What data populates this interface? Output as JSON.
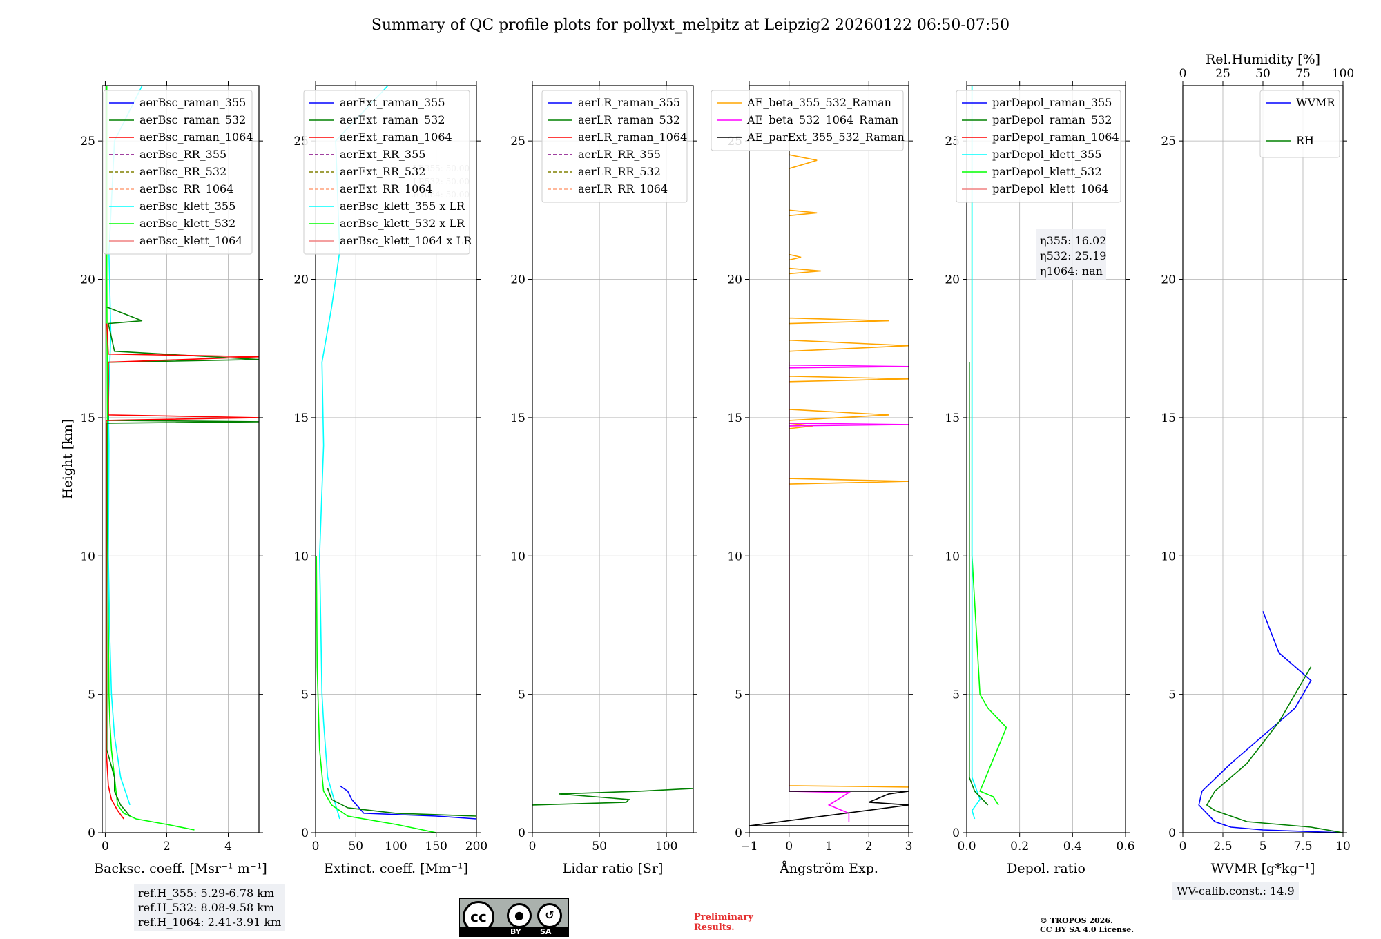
{
  "title": "Summary of QC profile plots for pollyxt_melpitz at Leipzig2 20260122 06:50-07:50",
  "colors": {
    "raman_355": "#0000ff",
    "raman_532": "#008000",
    "raman_1064": "#ff0000",
    "rr_355": "#800080",
    "rr_532": "#808000",
    "rr_1064": "#ffa07a",
    "klett_355": "#00ffff",
    "klett_532": "#00ff00",
    "klett_1064": "#f08080",
    "ae_beta_355_532": "#ffa500",
    "ae_beta_532_1064": "#ff00ff",
    "ae_parext": "#000000",
    "rh": "#008000",
    "wvmr": "#0000ff"
  },
  "chart_data": [
    {
      "type": "line",
      "id": "backscatter",
      "xlabel": "Backsc. coeff. [Msr⁻¹ m⁻¹]",
      "ylabel": "Height [km]",
      "xlim": [
        -0.1,
        5
      ],
      "ylim": [
        0,
        27
      ],
      "xticks": [
        0,
        2,
        4
      ],
      "yticks": [
        0,
        5,
        10,
        15,
        20,
        25
      ],
      "legend": [
        "aerBsc_raman_355",
        "aerBsc_raman_532",
        "aerBsc_raman_1064",
        "aerBsc_RR_355",
        "aerBsc_RR_532",
        "aerBsc_RR_1064",
        "aerBsc_klett_355",
        "aerBsc_klett_532",
        "aerBsc_klett_1064"
      ],
      "series": [
        {
          "name": "aerBsc_klett_532",
          "color": "klett_532",
          "x": [
            2.9,
            2.0,
            1.0,
            0.6,
            0.4,
            0.3,
            0.2,
            0.15,
            0.12,
            0.1,
            0.08,
            0.05,
            0.05
          ],
          "y": [
            0.1,
            0.3,
            0.5,
            0.7,
            1.0,
            2.0,
            3.0,
            4.0,
            5.0,
            8.0,
            12.0,
            20.0,
            27.0
          ]
        },
        {
          "name": "aerBsc_klett_355",
          "color": "klett_355",
          "x": [
            0.8,
            0.5,
            0.3,
            0.2,
            0.15,
            0.1,
            0.12,
            0.1,
            0.18,
            0.12,
            0.3,
            1.2
          ],
          "y": [
            1.0,
            2.0,
            3.5,
            5.0,
            7.0,
            10.0,
            14.0,
            15.5,
            18.0,
            21.0,
            25.0,
            27.0
          ]
        },
        {
          "name": "aerBsc_raman_532",
          "color": "raman_532",
          "x": [
            0.8,
            0.5,
            0.3,
            0.3,
            0.05,
            0.05,
            5.0,
            0.1,
            0.1,
            5.0,
            0.3,
            0.1,
            1.2,
            0.05
          ],
          "y": [
            0.6,
            1.0,
            1.5,
            2.0,
            3.0,
            14.8,
            14.85,
            14.9,
            17.0,
            17.1,
            17.4,
            18.4,
            18.5,
            19.0
          ]
        },
        {
          "name": "aerBsc_raman_1064",
          "color": "raman_1064",
          "x": [
            0.6,
            0.4,
            0.2,
            0.1,
            0.03,
            0.03,
            5.0,
            0.1,
            0.1,
            5.0,
            0.1,
            0.05
          ],
          "y": [
            0.5,
            0.8,
            1.2,
            1.7,
            3.0,
            14.9,
            15.0,
            15.1,
            17.0,
            17.2,
            17.3,
            18.4
          ]
        }
      ]
    },
    {
      "type": "line",
      "id": "extinction",
      "xlabel": "Extinct. coeff. [Mm⁻¹]",
      "xlim": [
        0,
        200
      ],
      "ylim": [
        0,
        27
      ],
      "xticks": [
        0,
        50,
        100,
        150,
        200
      ],
      "yticks": [
        0,
        5,
        10,
        15,
        20,
        25
      ],
      "legend": [
        "aerExt_raman_355",
        "aerExt_raman_532",
        "aerExt_raman_1064",
        "aerExt_RR_355",
        "aerExt_RR_532",
        "aerExt_RR_1064",
        "aerBsc_klett_355 x LR",
        "aerBsc_klett_532 x LR",
        "aerBsc_klett_1064 x LR"
      ],
      "lr_labels": [
        "LR355: 50.00",
        "LR532: 50.00",
        "LR1064: 50.00"
      ],
      "series": [
        {
          "name": "aerBsc_klett_355 x LR",
          "color": "klett_355",
          "x": [
            30,
            25,
            15,
            10,
            8,
            5,
            10,
            8,
            20,
            30,
            25,
            90
          ],
          "y": [
            0.5,
            1.0,
            2.0,
            4.0,
            5.0,
            10.0,
            14.0,
            17.0,
            19.0,
            21.0,
            25.0,
            27.0
          ]
        },
        {
          "name": "aerBsc_klett_532 x LR",
          "color": "klett_532",
          "x": [
            150,
            100,
            40,
            20,
            10,
            5,
            2,
            1
          ],
          "y": [
            0.0,
            0.3,
            0.6,
            1.0,
            1.5,
            3.0,
            6.0,
            10.0
          ]
        },
        {
          "name": "aerExt_raman_355",
          "color": "raman_355",
          "x": [
            200,
            150,
            60,
            45,
            40,
            30
          ],
          "y": [
            0.5,
            0.6,
            0.7,
            1.2,
            1.5,
            1.7
          ]
        },
        {
          "name": "aerExt_raman_532",
          "color": "raman_532",
          "x": [
            200,
            100,
            40,
            20,
            15
          ],
          "y": [
            0.6,
            0.7,
            0.9,
            1.2,
            1.6
          ]
        }
      ]
    },
    {
      "type": "line",
      "id": "lidar_ratio",
      "xlabel": "Lidar ratio [Sr]",
      "xlim": [
        0,
        120
      ],
      "ylim": [
        0,
        27
      ],
      "xticks": [
        0,
        50,
        100
      ],
      "yticks": [
        0,
        5,
        10,
        15,
        20,
        25
      ],
      "legend": [
        "aerLR_raman_355",
        "aerLR_raman_532",
        "aerLR_raman_1064",
        "aerLR_RR_355",
        "aerLR_RR_532",
        "aerLR_RR_1064"
      ],
      "series": [
        {
          "name": "aerLR_raman_532",
          "color": "raman_532",
          "x": [
            0,
            70,
            72,
            20,
            80,
            120
          ],
          "y": [
            1.0,
            1.1,
            1.2,
            1.4,
            1.5,
            1.6
          ]
        }
      ]
    },
    {
      "type": "line",
      "id": "angstrom",
      "xlabel": "Ångström Exp.",
      "xlim": [
        -1,
        3
      ],
      "ylim": [
        0,
        27
      ],
      "xticks": [
        -1,
        0,
        1,
        2,
        3
      ],
      "yticks": [
        0,
        5,
        10,
        15,
        20,
        25
      ],
      "legend": [
        "AE_beta_355_532_Raman",
        "AE_beta_532_1064_Raman",
        "AE_parExt_355_532_Raman"
      ],
      "series": [
        {
          "name": "AE_beta_355_532_Raman",
          "color": "ae_beta_355_532",
          "x": [
            0,
            0,
            0.7,
            0,
            0,
            3,
            0,
            0,
            3,
            0,
            0,
            2.5,
            0,
            0,
            3,
            0,
            0,
            2.5,
            0,
            0,
            0.7,
            0,
            0,
            0.3,
            0,
            0,
            0.8,
            0,
            0,
            0.6,
            0,
            0,
            3
          ],
          "y": [
            25.0,
            24.5,
            24.3,
            24.0,
            17.8,
            17.6,
            17.4,
            16.5,
            16.4,
            16.3,
            15.3,
            15.1,
            14.9,
            12.8,
            12.7,
            12.6,
            18.6,
            18.5,
            18.4,
            22.5,
            22.4,
            22.3,
            20.9,
            20.8,
            20.7,
            20.4,
            20.3,
            20.2,
            14.8,
            14.7,
            14.6,
            1.7,
            1.65
          ]
        },
        {
          "name": "AE_beta_532_1064_Raman",
          "color": "ae_beta_532_1064",
          "x": [
            0,
            0,
            3,
            0,
            0,
            3,
            0,
            0,
            1.5,
            1.0,
            1.5,
            1.5
          ],
          "y": [
            17.0,
            16.9,
            16.85,
            16.8,
            14.8,
            14.75,
            14.7,
            1.5,
            1.45,
            1.0,
            0.7,
            0.4
          ]
        },
        {
          "name": "AE_parExt_355_532_Raman",
          "color": "ae_parext",
          "x": [
            0,
            0,
            3,
            2.5,
            2.0,
            3,
            -1,
            3
          ],
          "y": [
            25.0,
            1.5,
            1.5,
            1.4,
            1.1,
            1.0,
            0.25,
            0.25
          ]
        }
      ]
    },
    {
      "type": "line",
      "id": "depolarization",
      "xlabel": "Depol. ratio",
      "xlim": [
        0,
        0.6
      ],
      "ylim": [
        0,
        27
      ],
      "xticks": [
        0.0,
        0.2,
        0.4,
        0.6
      ],
      "yticks": [
        0,
        5,
        10,
        15,
        20,
        25
      ],
      "legend": [
        "parDepol_raman_355",
        "parDepol_raman_532",
        "parDepol_raman_1064",
        "parDepol_klett_355",
        "parDepol_klett_532",
        "parDepol_klett_1064"
      ],
      "eta_labels": [
        "η355: 16.02",
        "η532: 25.19",
        "η1064: nan"
      ],
      "series": [
        {
          "name": "parDepol_klett_532",
          "color": "klett_532",
          "x": [
            0.12,
            0.1,
            0.05,
            0.15,
            0.08,
            0.05,
            0.02,
            0.02,
            0.02
          ],
          "y": [
            1.0,
            1.3,
            1.5,
            3.8,
            4.5,
            5.0,
            10.0,
            20.0,
            27.0
          ]
        },
        {
          "name": "parDepol_klett_355",
          "color": "klett_355",
          "x": [
            0.03,
            0.02,
            0.05,
            0.02,
            0.02,
            0.02
          ],
          "y": [
            0.5,
            0.8,
            1.2,
            2.0,
            10.0,
            27.0
          ]
        },
        {
          "name": "parDepol_raman_532",
          "color": "raman_532",
          "x": [
            0.08,
            0.03,
            0.01,
            0.01
          ],
          "y": [
            1.0,
            1.5,
            2.0,
            17.0
          ]
        }
      ]
    },
    {
      "type": "line",
      "id": "water_vapor",
      "xlabel": "WVMR [g*kg⁻¹]",
      "top_xlabel": "Rel.Humidity [%]",
      "xlim": [
        0,
        10
      ],
      "top_xlim": [
        0,
        100
      ],
      "ylim": [
        0,
        27
      ],
      "xticks": [
        0.0,
        2.5,
        5.0,
        7.5,
        10.0
      ],
      "top_xticks": [
        0,
        25,
        50,
        75,
        100
      ],
      "yticks": [
        0,
        5,
        10,
        15,
        20,
        25
      ],
      "legend": [
        "WVMR",
        "RH"
      ],
      "series": [
        {
          "name": "WVMR",
          "color": "wvmr",
          "x": [
            10.0,
            5.0,
            3.0,
            2.0,
            1.5,
            1.0,
            1.2,
            3.0,
            5.0,
            7.0,
            8.0,
            6.0,
            5.0
          ],
          "y": [
            0.0,
            0.1,
            0.2,
            0.4,
            0.7,
            1.0,
            1.5,
            2.5,
            3.5,
            4.5,
            5.5,
            6.5,
            8.0
          ]
        },
        {
          "name": "RH",
          "color": "rh",
          "x": [
            100,
            80,
            40,
            30,
            20,
            15,
            20,
            40,
            60,
            80
          ],
          "y": [
            0.0,
            0.2,
            0.4,
            0.6,
            0.8,
            1.0,
            1.5,
            2.5,
            4.0,
            6.0
          ]
        }
      ]
    }
  ],
  "info": {
    "ref_h_355": "ref.H_355: 5.29-6.78 km",
    "ref_h_532": "ref.H_532: 8.08-9.58 km",
    "ref_h_1064": "ref.H_1064: 2.41-3.91 km",
    "wv_calib": "WV-calib.const.: 14.9"
  },
  "footer": {
    "cc_text": "cc",
    "cc_by": "BY",
    "cc_sa": "SA",
    "preliminary_1": "Preliminary",
    "preliminary_2": "Results.",
    "license_1": "© TROPOS 2026.",
    "license_2": "CC BY SA 4.0 License."
  }
}
